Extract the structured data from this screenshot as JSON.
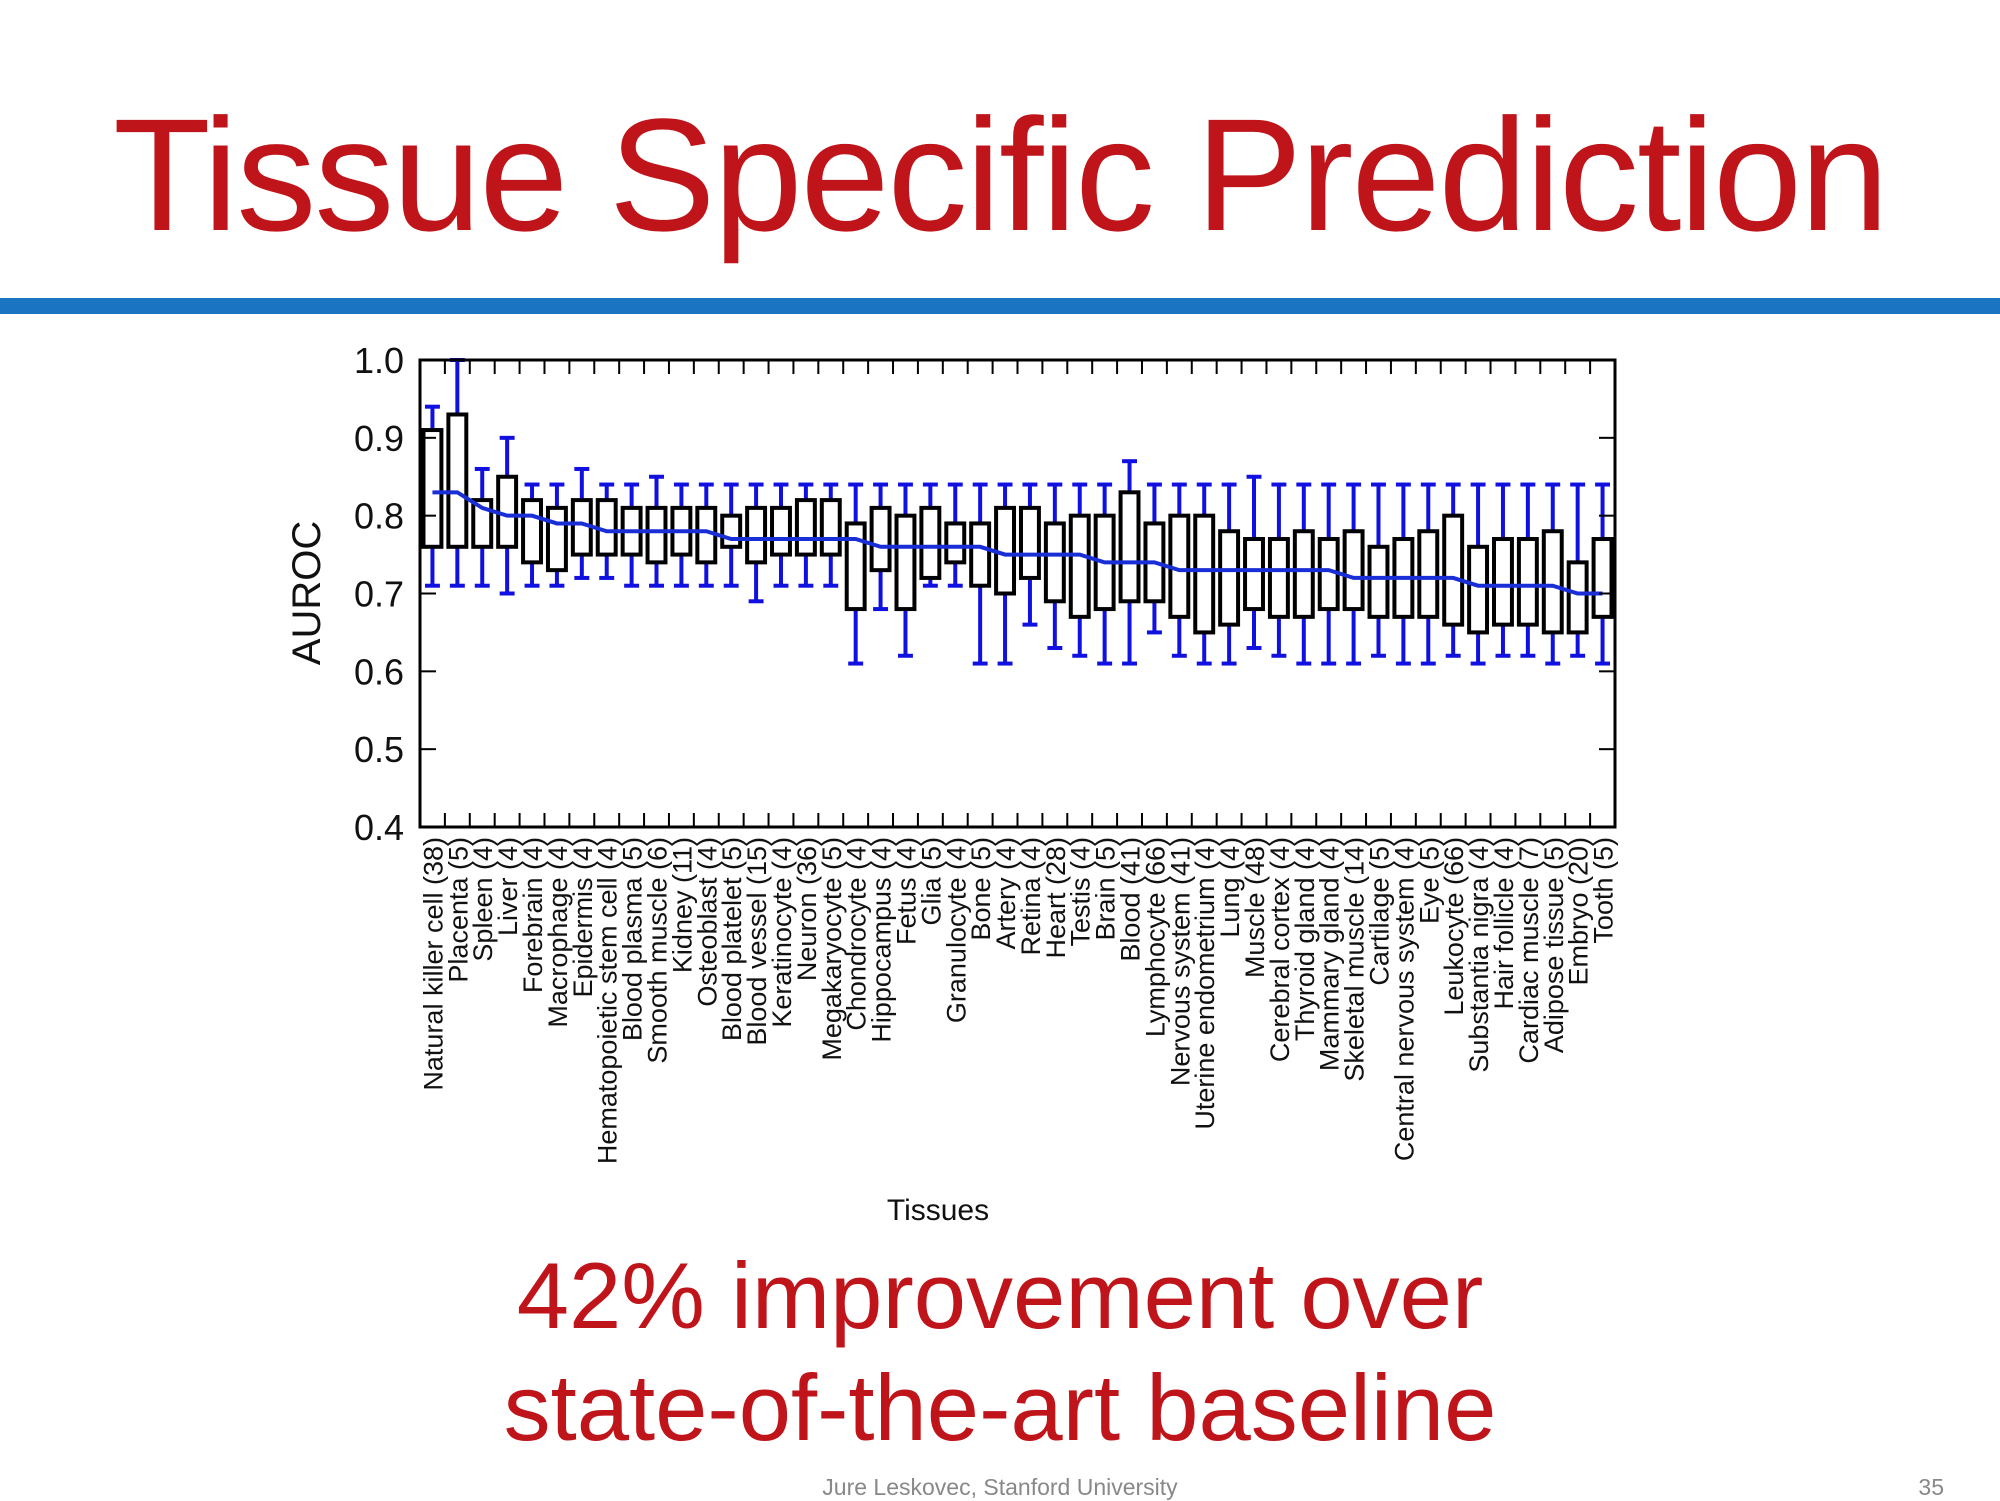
{
  "slide": {
    "title": "Tissue Specific Prediction",
    "caption_line1": "42% improvement over",
    "caption_line2": "state-of-the-art baseline",
    "footer": "Jure Leskovec, Stanford University",
    "page_number": "35"
  },
  "colors": {
    "title": "#c0141b",
    "rule": "#1b74c2",
    "whisker": "#1010e0",
    "median_line": "#1a2ed8",
    "box": "#000000",
    "axis": "#000000",
    "text": "#111111",
    "footer": "#888888"
  },
  "chart_data": {
    "type": "boxplot",
    "title": "",
    "xlabel": "Tissues",
    "ylabel": "AUROC",
    "ylim": [
      0.4,
      1.0
    ],
    "yticks": [
      "0.4",
      "0.5",
      "0.6",
      "0.7",
      "0.8",
      "0.9",
      "1.0"
    ],
    "grid": false,
    "categories": [
      "Natural killer cell (38)",
      "Placenta (5)",
      "Spleen (4)",
      "Liver (4)",
      "Forebrain (4)",
      "Macrophage (4)",
      "Epidermis (4)",
      "Hematopoietic stem cell (4)",
      "Blood plasma (5)",
      "Smooth muscle (6)",
      "Kidney (11)",
      "Osteoblast (4)",
      "Blood platelet (5)",
      "Blood vessel (15)",
      "Keratinocyte (4)",
      "Neuron (36)",
      "Megakaryocyte (5)",
      "Chondrocyte (4)",
      "Hippocampus (4)",
      "Fetus (4)",
      "Glia (5)",
      "Granulocyte (4)",
      "Bone (5)",
      "Artery (4)",
      "Retina (4)",
      "Heart (28)",
      "Testis (4)",
      "Brain (5)",
      "Blood (41)",
      "Lymphocyte (66)",
      "Nervous system (41)",
      "Uterine endometrium (4)",
      "Lung (4)",
      "Muscle (48)",
      "Cerebral cortex (4)",
      "Thyroid gland (4)",
      "Mammary gland (4)",
      "Skeletal muscle (14)",
      "Cartilage (5)",
      "Central nervous system (4)",
      "Eye (5)",
      "Leukocyte (66)",
      "Substantia nigra (4)",
      "Hair follicle (4)",
      "Cardiac muscle (7)",
      "Adipose tissue (5)",
      "Embryo (20)",
      "Tooth (5)"
    ],
    "whisker_low": [
      0.71,
      0.71,
      0.71,
      0.7,
      0.71,
      0.71,
      0.72,
      0.72,
      0.71,
      0.71,
      0.71,
      0.71,
      0.71,
      0.69,
      0.71,
      0.71,
      0.71,
      0.61,
      0.68,
      0.62,
      0.71,
      0.71,
      0.61,
      0.61,
      0.66,
      0.63,
      0.62,
      0.61,
      0.61,
      0.65,
      0.62,
      0.61,
      0.61,
      0.63,
      0.62,
      0.61,
      0.61,
      0.61,
      0.62,
      0.61,
      0.61,
      0.62,
      0.61,
      0.62,
      0.62,
      0.61,
      0.62,
      0.61
    ],
    "q1": [
      0.76,
      0.76,
      0.76,
      0.76,
      0.74,
      0.73,
      0.75,
      0.75,
      0.75,
      0.74,
      0.75,
      0.74,
      0.76,
      0.74,
      0.75,
      0.75,
      0.75,
      0.68,
      0.73,
      0.68,
      0.72,
      0.74,
      0.71,
      0.7,
      0.72,
      0.69,
      0.67,
      0.68,
      0.69,
      0.69,
      0.67,
      0.65,
      0.66,
      0.68,
      0.67,
      0.67,
      0.68,
      0.68,
      0.67,
      0.67,
      0.67,
      0.66,
      0.65,
      0.66,
      0.66,
      0.65,
      0.65,
      0.67
    ],
    "q3": [
      0.91,
      0.93,
      0.82,
      0.85,
      0.82,
      0.81,
      0.82,
      0.82,
      0.81,
      0.81,
      0.81,
      0.81,
      0.8,
      0.81,
      0.81,
      0.82,
      0.82,
      0.79,
      0.81,
      0.8,
      0.81,
      0.79,
      0.79,
      0.81,
      0.81,
      0.79,
      0.8,
      0.8,
      0.83,
      0.79,
      0.8,
      0.8,
      0.78,
      0.77,
      0.77,
      0.78,
      0.77,
      0.78,
      0.76,
      0.77,
      0.78,
      0.8,
      0.76,
      0.77,
      0.77,
      0.78,
      0.74,
      0.77
    ],
    "whisker_high": [
      0.94,
      1.0,
      0.86,
      0.9,
      0.84,
      0.84,
      0.86,
      0.84,
      0.84,
      0.85,
      0.84,
      0.84,
      0.84,
      0.84,
      0.84,
      0.84,
      0.84,
      0.84,
      0.84,
      0.84,
      0.84,
      0.84,
      0.84,
      0.84,
      0.84,
      0.84,
      0.84,
      0.84,
      0.87,
      0.84,
      0.84,
      0.84,
      0.84,
      0.85,
      0.84,
      0.84,
      0.84,
      0.84,
      0.84,
      0.84,
      0.84,
      0.84,
      0.84,
      0.84,
      0.84,
      0.84,
      0.84,
      0.84
    ],
    "mean_trend": [
      0.83,
      0.83,
      0.81,
      0.8,
      0.8,
      0.79,
      0.79,
      0.78,
      0.78,
      0.78,
      0.78,
      0.78,
      0.77,
      0.77,
      0.77,
      0.77,
      0.77,
      0.77,
      0.76,
      0.76,
      0.76,
      0.76,
      0.76,
      0.75,
      0.75,
      0.75,
      0.75,
      0.74,
      0.74,
      0.74,
      0.73,
      0.73,
      0.73,
      0.73,
      0.73,
      0.73,
      0.73,
      0.72,
      0.72,
      0.72,
      0.72,
      0.72,
      0.71,
      0.71,
      0.71,
      0.71,
      0.7,
      0.7
    ]
  }
}
